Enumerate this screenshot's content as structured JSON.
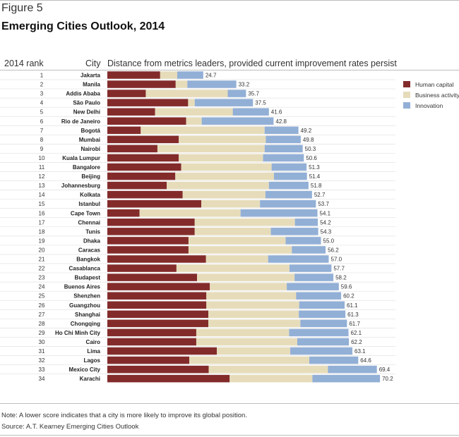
{
  "figure_label": "Figure 5",
  "title": "Emerging Cities Outlook, 2014",
  "headers": {
    "rank": "2014 rank",
    "city": "City",
    "distance": "Distance from metrics leaders, provided current improvement rates persist"
  },
  "footnotes": {
    "note": "Note: A lower score indicates that a city is more likely to improve its global position.",
    "source": "Source: A.T. Kearney Emerging Cities Outlook"
  },
  "chart_data": {
    "type": "bar",
    "orientation": "horizontal",
    "stacked": true,
    "title": "Emerging Cities Outlook, 2014",
    "legend_position": "right",
    "colors": {
      "Human capital": "#832b2b",
      "Business activity": "#e6dcba",
      "Innovation": "#92afd6"
    },
    "ranks": [
      1,
      2,
      3,
      4,
      5,
      6,
      7,
      8,
      9,
      10,
      11,
      12,
      13,
      14,
      15,
      16,
      17,
      18,
      19,
      20,
      21,
      22,
      23,
      24,
      25,
      26,
      27,
      28,
      29,
      30,
      31,
      32,
      33,
      34
    ],
    "categories": [
      "Jakarta",
      "Manila",
      "Addis Ababa",
      "São Paulo",
      "New Delhi",
      "Rio de Janeiro",
      "Bogotá",
      "Mumbai",
      "Nairobi",
      "Kuala Lumpur",
      "Bangalore",
      "Beijing",
      "Johannesburg",
      "Kolkata",
      "Istanbul",
      "Cape Town",
      "Chennai",
      "Tunis",
      "Dhaka",
      "Caracas",
      "Bangkok",
      "Casablanca",
      "Budapest",
      "Buenos Aires",
      "Shenzhen",
      "Guangzhou",
      "Shanghai",
      "Chongqing",
      "Ho Chi Minh City",
      "Cairo",
      "Lima",
      "Lagos",
      "Mexico City",
      "Karachi"
    ],
    "series": [
      {
        "name": "Human capital",
        "values": [
          13.6,
          17.6,
          9.9,
          20.8,
          12.3,
          20.3,
          8.6,
          18.4,
          12.9,
          18.4,
          19.0,
          17.5,
          15.3,
          19.4,
          24.2,
          8.3,
          22.5,
          22.5,
          20.9,
          20.9,
          25.4,
          17.8,
          23.1,
          26.4,
          25.5,
          25.5,
          26.0,
          26.0,
          22.9,
          22.9,
          28.2,
          21.1,
          26.1,
          31.5
        ]
      },
      {
        "name": "Business activity",
        "values": [
          4.4,
          3.0,
          21.1,
          1.7,
          20.0,
          4.0,
          31.9,
          22.4,
          27.6,
          21.7,
          23.3,
          25.4,
          26.3,
          21.3,
          15.1,
          26.0,
          25.8,
          19.6,
          25.0,
          26.6,
          16.0,
          29.1,
          25.1,
          19.8,
          23.1,
          23.9,
          23.3,
          23.7,
          23.9,
          26.0,
          18.9,
          30.9,
          30.7,
          21.3
        ]
      },
      {
        "name": "Innovation",
        "values": [
          6.7,
          12.6,
          4.7,
          15.0,
          9.3,
          18.5,
          8.7,
          9.0,
          9.8,
          10.5,
          9.0,
          8.5,
          10.2,
          12.0,
          14.4,
          19.8,
          5.9,
          12.2,
          9.1,
          8.7,
          15.6,
          10.8,
          10.0,
          13.4,
          11.6,
          11.7,
          12.0,
          12.0,
          15.3,
          13.3,
          16.0,
          12.6,
          12.6,
          17.4
        ]
      }
    ],
    "totals": [
      24.7,
      33.2,
      35.7,
      37.5,
      41.6,
      42.8,
      49.2,
      49.8,
      50.3,
      50.6,
      51.3,
      51.4,
      51.8,
      52.7,
      53.7,
      54.1,
      54.2,
      54.3,
      55.0,
      56.2,
      57.0,
      57.7,
      58.2,
      59.6,
      60.2,
      61.1,
      61.3,
      61.7,
      62.1,
      62.2,
      63.1,
      64.6,
      69.4,
      70.2
    ],
    "total_labels": [
      "24.7",
      "33.2",
      "35.7",
      "37.5",
      "41.6",
      "42.8",
      "49.2",
      "49.8",
      "50.3",
      "50.6",
      "51.3",
      "51.4",
      "51.8",
      "52.7",
      "53.7",
      "54.1",
      "54.2",
      "54.3",
      "55.0",
      "56.2",
      "57.0",
      "57.7",
      "58.2",
      "59.6",
      "60.2",
      "61.1",
      "61.3",
      "61.7",
      "62.1",
      "62.2",
      "63.1",
      "64.6",
      "69.4",
      "70.2"
    ]
  }
}
